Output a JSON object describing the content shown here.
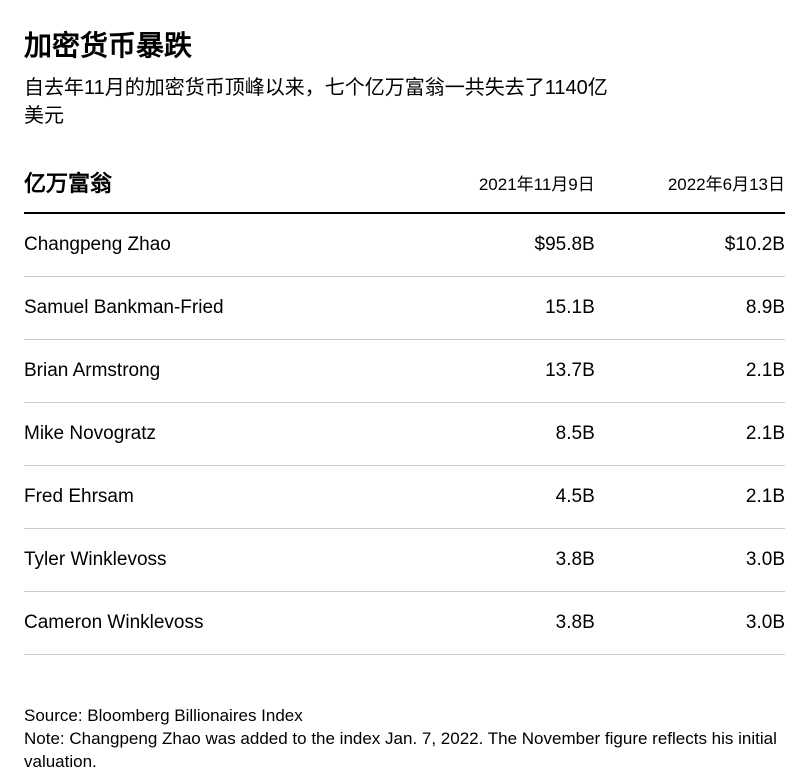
{
  "title": "加密货币暴跌",
  "subtitle": "自去年11月的加密货币顶峰以来，七个亿万富翁一共失去了1140亿美元",
  "table": {
    "headers": {
      "name": "亿万富翁",
      "col1": "2021年11月9日",
      "col2": "2022年6月13日"
    },
    "rows": [
      {
        "name": "Changpeng Zhao",
        "v1": "$95.8B",
        "v2": "$10.2B"
      },
      {
        "name": "Samuel Bankman-Fried",
        "v1": "15.1B",
        "v2": "8.9B"
      },
      {
        "name": "Brian Armstrong",
        "v1": "13.7B",
        "v2": "2.1B"
      },
      {
        "name": "Mike Novogratz",
        "v1": "8.5B",
        "v2": "2.1B"
      },
      {
        "name": "Fred Ehrsam",
        "v1": "4.5B",
        "v2": "2.1B"
      },
      {
        "name": "Tyler Winklevoss",
        "v1": "3.8B",
        "v2": "3.0B"
      },
      {
        "name": "Cameron Winklevoss",
        "v1": "3.8B",
        "v2": "3.0B"
      }
    ]
  },
  "footer": {
    "source": "Source: Bloomberg Billionaires Index",
    "note": "Note: Changpeng Zhao was added to the index Jan. 7, 2022. The November figure reflects his initial valuation."
  },
  "styles": {
    "background_color": "#ffffff",
    "text_color": "#000000",
    "title_fontsize": 28,
    "title_fontweight": 700,
    "subtitle_fontsize": 20,
    "header_border_color": "#000000",
    "header_border_width": 2,
    "row_border_color": "#cccccc",
    "row_border_width": 1,
    "body_fontsize": 19,
    "footer_fontsize": 17,
    "column_widths": [
      "50%",
      "25%",
      "25%"
    ],
    "column_align": [
      "left",
      "right",
      "right"
    ]
  }
}
